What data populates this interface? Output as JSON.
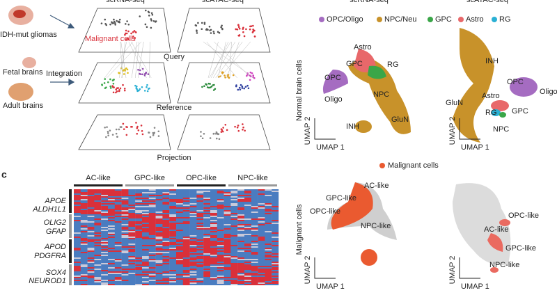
{
  "panel_a": {
    "headers": [
      "scRNA-seq",
      "scATAC-seq"
    ],
    "query_sample": "IDH-mut gliomas",
    "malignant_label": "Malignant cells",
    "stages": [
      "Query",
      "Reference",
      "Projection"
    ],
    "fetal": "Fetal brains",
    "integration": "Integration",
    "adult": "Adult brains"
  },
  "panel_b": {
    "headers": [
      "scRNA-seq",
      "scATAC-seq"
    ],
    "legend": [
      "OPC/Oligo",
      "NPC/Neu",
      "GPC",
      "Astro",
      "RG"
    ],
    "row_label": "Normal brain cells",
    "axis_x": "UMAP 1",
    "axis_y": "UMAP 2",
    "rna_labels": [
      "Astro",
      "GPC",
      "RG",
      "OPC",
      "Oligo",
      "NPC",
      "INH",
      "GluN"
    ],
    "atac_labels": [
      "INH",
      "OPC",
      "Oligo",
      "Astro",
      "RG",
      "GPC",
      "GluN",
      "NPC"
    ]
  },
  "panel_m": {
    "legend": "Malignant cells",
    "row_label": "Malignant cells",
    "rna_labels": [
      "AC-like",
      "GPC-like",
      "OPC-like",
      "NPC-like"
    ],
    "atac_labels": [
      "OPC-like",
      "AC-like",
      "GPC-like",
      "NPC-like"
    ]
  },
  "panel_c": {
    "letter": "c",
    "groups": [
      "AC-like",
      "GPC-like",
      "OPC-like",
      "NPC-like"
    ],
    "genes": [
      "APOE",
      "ALDH1L1",
      "OLIG2",
      "GFAP",
      "APOD",
      "PDGFRA",
      "SOX4",
      "NEUROD1"
    ]
  }
}
